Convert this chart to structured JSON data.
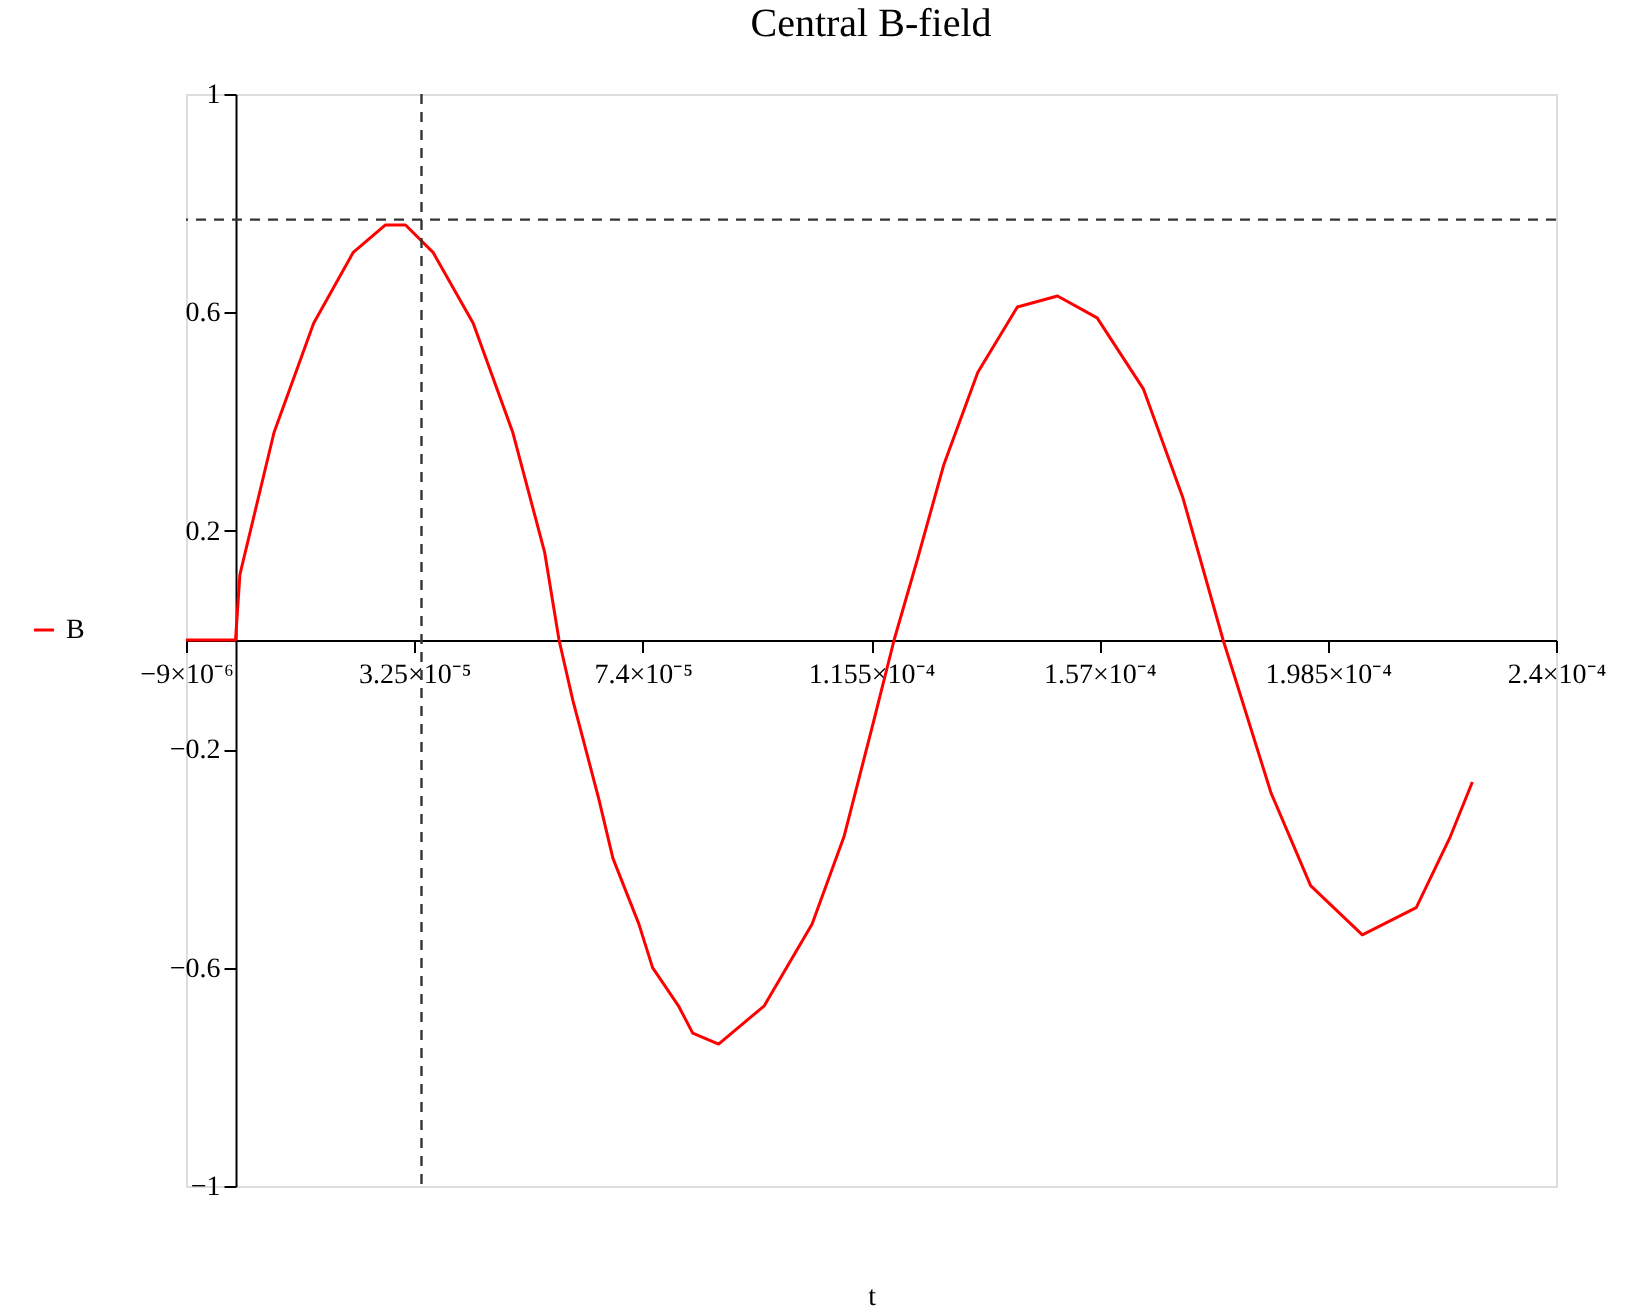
{
  "chart_data": {
    "type": "line",
    "title": "Central B-field",
    "xlabel": "t",
    "xlim": [
      -9e-06,
      0.00024
    ],
    "ylim": [
      -1,
      1
    ],
    "xticks": [
      {
        "value": -9e-06,
        "label": "−9×10⁻⁶"
      },
      {
        "value": 3.25e-05,
        "label": "3.25×10⁻⁵"
      },
      {
        "value": 7.4e-05,
        "label": "7.4×10⁻⁵"
      },
      {
        "value": 0.0001155,
        "label": "1.155×10⁻⁴"
      },
      {
        "value": 0.000157,
        "label": "1.57×10⁻⁴"
      },
      {
        "value": 0.0001985,
        "label": "1.985×10⁻⁴"
      },
      {
        "value": 0.00024,
        "label": "2.4×10⁻⁴"
      }
    ],
    "yticks": [
      -1,
      -0.6,
      -0.2,
      0.2,
      0.6,
      1
    ],
    "series": [
      {
        "name": "B",
        "color": "#ff0000",
        "x": [
          -9e-06,
          -4.6e-06,
          0,
          8e-07,
          7e-06,
          1.42e-05,
          2.14e-05,
          2.72e-05,
          3.09e-05,
          3.59e-05,
          4.32e-05,
          5.04e-05,
          5.62e-05,
          5.88e-05,
          6.13e-05,
          6.6e-05,
          6.86e-05,
          7.33e-05,
          7.58e-05,
          8.05e-05,
          8.31e-05,
          8.78e-05,
          9.61e-05,
          0.0001048,
          0.0001106,
          0.0001157,
          0.0001197,
          0.000124,
          0.0001287,
          0.0001349,
          0.0001421,
          0.0001494,
          0.0001566,
          0.000165,
          0.0001722,
          0.0001795,
          0.000182,
          0.0001882,
          0.0001954,
          0.0002048,
          0.0002146,
          0.0002208,
          0.0002248
        ],
        "values": [
          0,
          0,
          0,
          0.12,
          0.38,
          0.58,
          0.71,
          0.76,
          0.76,
          0.71,
          0.58,
          0.38,
          0.16,
          0,
          -0.11,
          -0.29,
          -0.4,
          -0.52,
          -0.6,
          -0.67,
          -0.72,
          -0.74,
          -0.67,
          -0.52,
          -0.36,
          -0.16,
          0,
          0.15,
          0.32,
          0.49,
          0.61,
          0.63,
          0.59,
          0.46,
          0.26,
          0,
          -0.08,
          -0.28,
          -0.45,
          -0.54,
          -0.49,
          -0.36,
          -0.26
        ]
      }
    ],
    "ref_lines": [
      {
        "axis": "x",
        "value": 3.38e-05,
        "line_style": "dashed",
        "color": "#333333"
      },
      {
        "axis": "y",
        "value": 0.77,
        "line_style": "dashed",
        "color": "#333333"
      }
    ],
    "legend": "left",
    "grid": false,
    "marker": "none",
    "line_style": "solid"
  }
}
